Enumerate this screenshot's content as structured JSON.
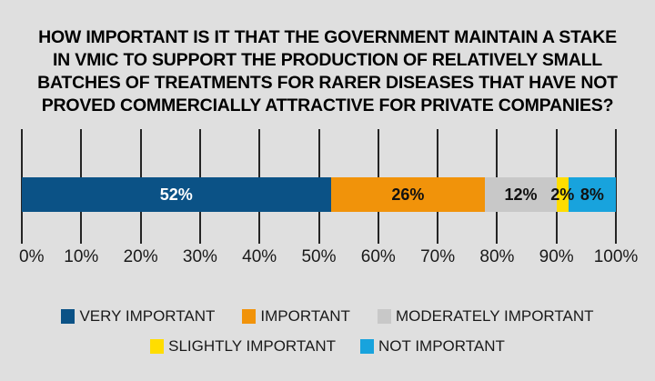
{
  "title": {
    "lines": [
      "HOW IMPORTANT IS IT THAT THE GOVERNMENT MAINTAIN A STAKE",
      "IN VMIC TO SUPPORT THE PRODUCTION OF RELATIVELY SMALL",
      "BATCHES OF TREATMENTS FOR RARER DISEASES THAT HAVE NOT",
      "PROVED COMMERCIALLY ATTRACTIVE FOR PRIVATE COMPANIES?"
    ]
  },
  "chart_data": {
    "type": "bar",
    "orientation": "horizontal-stacked",
    "title": "HOW IMPORTANT IS IT THAT THE GOVERNMENT MAINTAIN A STAKE IN VMIC TO SUPPORT THE PRODUCTION OF RELATIVELY SMALL BATCHES OF TREATMENTS FOR RARER DISEASES THAT HAVE NOT PROVED COMMERCIALLY ATTRACTIVE FOR PRIVATE COMPANIES?",
    "categories": [
      "VERY IMPORTANT",
      "IMPORTANT",
      "MODERATELY IMPORTANT",
      "SLIGHTLY IMPORTANT",
      "NOT IMPORTANT"
    ],
    "values": [
      52,
      26,
      12,
      2,
      8
    ],
    "segments": [
      {
        "name": "VERY IMPORTANT",
        "value": 52,
        "label": "52%",
        "color": "#0b5286",
        "label_color": "#ffffff"
      },
      {
        "name": "IMPORTANT",
        "value": 26,
        "label": "26%",
        "color": "#f1930a",
        "label_color": "#111111"
      },
      {
        "name": "MODERATELY IMPORTANT",
        "value": 12,
        "label": "12%",
        "color": "#c8c8c8",
        "label_color": "#111111"
      },
      {
        "name": "SLIGHTLY IMPORTANT",
        "value": 2,
        "label": "2%",
        "color": "#ffdd00",
        "label_color": "#111111"
      },
      {
        "name": "NOT IMPORTANT",
        "value": 8,
        "label": "8%",
        "color": "#18a3dd",
        "label_color": "#111111"
      }
    ],
    "x_ticks": [
      "0%",
      "10%",
      "20%",
      "30%",
      "40%",
      "50%",
      "60%",
      "70%",
      "80%",
      "90%",
      "100%"
    ],
    "xlim": [
      0,
      100
    ],
    "grid": true,
    "legend_position": "bottom"
  },
  "legend": {
    "items": [
      {
        "label": "VERY IMPORTANT",
        "color": "#0b5286"
      },
      {
        "label": "IMPORTANT",
        "color": "#f1930a"
      },
      {
        "label": "MODERATELY IMPORTANT",
        "color": "#c8c8c8"
      },
      {
        "label": "SLIGHTLY IMPORTANT",
        "color": "#ffdd00"
      },
      {
        "label": "NOT IMPORTANT",
        "color": "#18a3dd"
      }
    ]
  },
  "colors": {
    "background": "#dfdfdf",
    "grid": "#242424",
    "text": "#1a1a1a"
  }
}
